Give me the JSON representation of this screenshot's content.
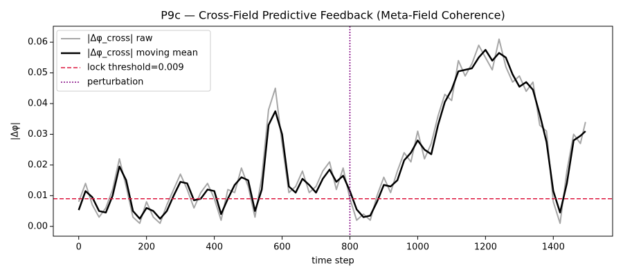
{
  "chart_data": {
    "type": "line",
    "title": "P9c — Cross-Field Predictive Feedback (Meta-Field Coherence)",
    "xlabel": "time step",
    "ylabel": "|Δφ|",
    "x": [
      0,
      20,
      40,
      60,
      80,
      100,
      120,
      140,
      160,
      180,
      200,
      220,
      240,
      260,
      280,
      300,
      320,
      340,
      360,
      380,
      400,
      420,
      440,
      460,
      480,
      500,
      520,
      540,
      560,
      580,
      600,
      620,
      640,
      660,
      680,
      700,
      720,
      740,
      760,
      780,
      800,
      820,
      840,
      860,
      880,
      900,
      920,
      940,
      960,
      980,
      1000,
      1020,
      1040,
      1060,
      1080,
      1100,
      1120,
      1140,
      1160,
      1180,
      1200,
      1220,
      1240,
      1260,
      1280,
      1300,
      1320,
      1340,
      1360,
      1380,
      1400,
      1420,
      1440,
      1460,
      1480,
      1495
    ],
    "series": [
      {
        "name": "|Δφ_cross| raw",
        "color": "#a6a6a6",
        "width": 2,
        "dash": "",
        "values": [
          0.008,
          0.014,
          0.007,
          0.003,
          0.006,
          0.012,
          0.022,
          0.013,
          0.003,
          0.001,
          0.008,
          0.003,
          0.001,
          0.007,
          0.012,
          0.017,
          0.012,
          0.006,
          0.011,
          0.014,
          0.009,
          0.002,
          0.012,
          0.011,
          0.019,
          0.013,
          0.003,
          0.016,
          0.038,
          0.045,
          0.027,
          0.011,
          0.013,
          0.018,
          0.011,
          0.013,
          0.018,
          0.021,
          0.012,
          0.019,
          0.009,
          0.002,
          0.004,
          0.002,
          0.01,
          0.016,
          0.011,
          0.018,
          0.024,
          0.021,
          0.031,
          0.022,
          0.027,
          0.036,
          0.043,
          0.041,
          0.054,
          0.049,
          0.053,
          0.059,
          0.055,
          0.051,
          0.061,
          0.052,
          0.047,
          0.049,
          0.044,
          0.047,
          0.033,
          0.031,
          0.008,
          0.001,
          0.018,
          0.03,
          0.027,
          0.034
        ]
      },
      {
        "name": "|Δφ_cross| moving mean",
        "color": "#000000",
        "width": 2.5,
        "dash": "",
        "values": [
          0.0053,
          0.0115,
          0.0095,
          0.005,
          0.0045,
          0.01,
          0.0195,
          0.015,
          0.005,
          0.0025,
          0.006,
          0.005,
          0.0025,
          0.005,
          0.01,
          0.0145,
          0.014,
          0.0085,
          0.009,
          0.012,
          0.0115,
          0.004,
          0.009,
          0.0135,
          0.016,
          0.015,
          0.005,
          0.012,
          0.033,
          0.0375,
          0.03,
          0.013,
          0.011,
          0.0155,
          0.0135,
          0.011,
          0.0155,
          0.0185,
          0.0145,
          0.0165,
          0.0115,
          0.0055,
          0.003,
          0.0035,
          0.008,
          0.0135,
          0.013,
          0.015,
          0.0215,
          0.024,
          0.028,
          0.025,
          0.0235,
          0.033,
          0.0405,
          0.0445,
          0.0505,
          0.051,
          0.0515,
          0.055,
          0.0575,
          0.054,
          0.0565,
          0.055,
          0.0495,
          0.0455,
          0.047,
          0.0445,
          0.0365,
          0.0275,
          0.0115,
          0.0045,
          0.014,
          0.028,
          0.0295,
          0.031
        ]
      }
    ],
    "threshold": {
      "name": "lock threshold=0.009",
      "value": 0.009,
      "color": "#dc143c"
    },
    "perturbation": {
      "name": "perturbation",
      "x": 800,
      "color": "#800080"
    },
    "xlim": [
      -75,
      1575
    ],
    "ylim": [
      -0.0032,
      0.0652
    ],
    "xticks": [
      0,
      200,
      400,
      600,
      800,
      1000,
      1200,
      1400
    ],
    "yticks": [
      {
        "value": 0,
        "label": "0.00"
      },
      0.01,
      0.02,
      0.03,
      0.04,
      0.05,
      0.06
    ],
    "legend": "upper left"
  }
}
